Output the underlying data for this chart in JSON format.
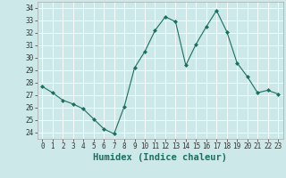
{
  "x": [
    0,
    1,
    2,
    3,
    4,
    5,
    6,
    7,
    8,
    9,
    10,
    11,
    12,
    13,
    14,
    15,
    16,
    17,
    18,
    19,
    20,
    21,
    22,
    23
  ],
  "y": [
    27.7,
    27.2,
    26.6,
    26.3,
    25.9,
    25.1,
    24.3,
    23.9,
    26.1,
    29.2,
    30.5,
    32.2,
    33.3,
    32.9,
    29.4,
    31.1,
    32.5,
    33.8,
    32.1,
    29.6,
    28.5,
    27.2,
    27.4,
    27.1
  ],
  "line_color": "#1a7060",
  "marker": "D",
  "marker_size": 2.0,
  "background_color": "#cce8e8",
  "grid_color": "#ffffff",
  "xlabel": "Humidex (Indice chaleur)",
  "ylim": [
    23.5,
    34.5
  ],
  "yticks": [
    24,
    25,
    26,
    27,
    28,
    29,
    30,
    31,
    32,
    33,
    34
  ],
  "xticks": [
    0,
    1,
    2,
    3,
    4,
    5,
    6,
    7,
    8,
    9,
    10,
    11,
    12,
    13,
    14,
    15,
    16,
    17,
    18,
    19,
    20,
    21,
    22,
    23
  ],
  "xlim": [
    -0.5,
    23.5
  ],
  "tick_fontsize": 5.5,
  "xlabel_fontsize": 7.5
}
